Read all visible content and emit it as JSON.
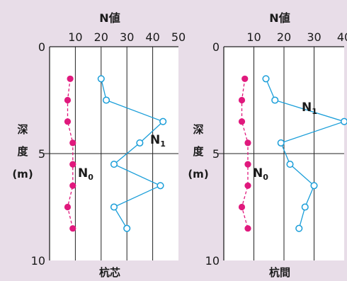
{
  "chart_data": [
    {
      "type": "scatter",
      "title": "",
      "top_axis_label": "N値",
      "x_ticks": [
        "10",
        "20",
        "30",
        "40",
        "50"
      ],
      "xlim": [
        0,
        50
      ],
      "ylim": [
        0,
        10
      ],
      "y_ticks": [
        "0",
        "5",
        "10"
      ],
      "ylabel_lines": [
        "深",
        "度",
        "(m)"
      ],
      "bottom_label": "杭芯",
      "grid": true,
      "series": [
        {
          "name": "N₀",
          "label_main": "N",
          "label_sub": "0",
          "color": "#e0197d",
          "marker": "filled-circle",
          "line": "dashed",
          "x": [
            8,
            7,
            7,
            9,
            9,
            9,
            7,
            9
          ],
          "y": [
            1.5,
            2.5,
            3.5,
            4.5,
            5.5,
            6.5,
            7.5,
            8.5
          ]
        },
        {
          "name": "N₁",
          "label_main": "N",
          "label_sub": "1",
          "color": "#1a9ed9",
          "marker": "open-circle",
          "line": "solid",
          "x": [
            20,
            22,
            44,
            35,
            25,
            43,
            25,
            30
          ],
          "y": [
            1.5,
            2.5,
            3.5,
            4.5,
            5.5,
            6.5,
            7.5,
            8.5
          ]
        }
      ]
    },
    {
      "type": "scatter",
      "title": "",
      "top_axis_label": "N値",
      "x_ticks": [
        "10",
        "20",
        "30",
        "40"
      ],
      "xlim": [
        0,
        40
      ],
      "ylim": [
        0,
        10
      ],
      "y_ticks": [
        "0",
        "5",
        "10"
      ],
      "ylabel_lines": [
        "深",
        "度",
        "(m)"
      ],
      "bottom_label": "杭間",
      "grid": true,
      "series": [
        {
          "name": "N₀",
          "label_main": "N",
          "label_sub": "0",
          "color": "#e0197d",
          "marker": "filled-circle",
          "line": "dashed",
          "x": [
            7,
            6,
            6,
            8,
            8,
            8,
            6,
            8
          ],
          "y": [
            1.5,
            2.5,
            3.5,
            4.5,
            5.5,
            6.5,
            7.5,
            8.5
          ]
        },
        {
          "name": "N₁",
          "label_main": "N",
          "label_sub": "1",
          "color": "#1a9ed9",
          "marker": "open-circle",
          "line": "solid",
          "x": [
            14,
            17,
            40,
            19,
            22,
            30,
            27,
            25
          ],
          "y": [
            1.5,
            2.5,
            3.5,
            4.5,
            5.5,
            6.5,
            7.5,
            8.5
          ]
        }
      ]
    }
  ]
}
